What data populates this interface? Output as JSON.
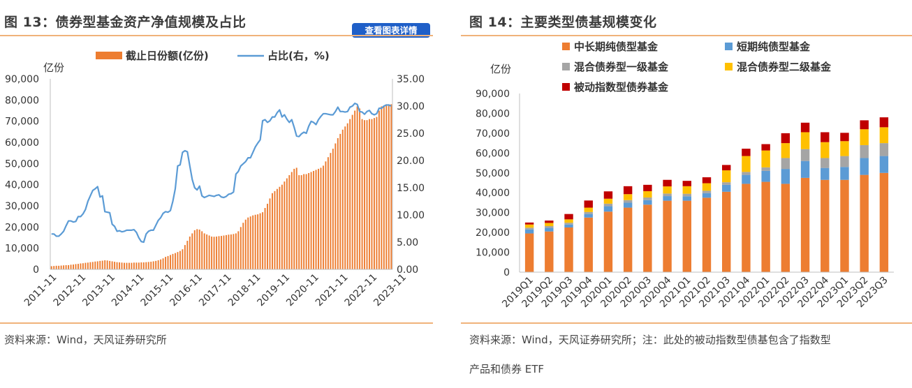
{
  "left": {
    "title": "图 13：债券型基金资产净值规模及占比",
    "button_label": "查看图表详情",
    "source": "资料来源：Wind，天风证券研究所"
  },
  "right": {
    "title": "图 14：主要类型债基规模变化",
    "source_line1": "资料来源：Wind，天风证券研究所；注：此处的被动指数型债基包含了指数型",
    "source_line2": "产品和债券 ETF"
  },
  "colors": {
    "rule": "#f0b27a",
    "bar_orange": "#ed7d31",
    "line_blue": "#5b9bd5",
    "gray": "#a5a5a5",
    "yellow": "#ffc000",
    "red": "#c00000",
    "button_blue": "#1f5fc8"
  },
  "chart_data": [
    {
      "type": "bar+line",
      "y_left_label": "亿份",
      "legend": [
        "截止日份额(亿份)",
        "占比(右，%)"
      ],
      "legend_position": "top-center",
      "y_left_ticks": [
        "0",
        "10,000",
        "20,000",
        "30,000",
        "40,000",
        "50,000",
        "60,000",
        "70,000",
        "80,000",
        "90,000"
      ],
      "y_right_ticks": [
        "0.00",
        "5.00",
        "10.00",
        "15.00",
        "20.00",
        "25.00",
        "30.00",
        "35.00"
      ],
      "ylim_left": [
        0,
        90000
      ],
      "ylim_right": [
        0,
        35
      ],
      "x_ticks": [
        "2011-11",
        "2012-11",
        "2013-11",
        "2014-11",
        "2015-11",
        "2016-11",
        "2017-11",
        "2018-11",
        "2019-11",
        "2020-11",
        "2021-11",
        "2022-11",
        "2023-11"
      ],
      "grid": false,
      "x_start": "2011-11",
      "series": [
        {
          "name": "截止日份额(亿份)",
          "type": "bar",
          "values": [
            1500,
            1600,
            1700,
            1700,
            1800,
            1900,
            2000,
            2000,
            2200,
            2300,
            2500,
            2600,
            2800,
            2900,
            3100,
            3200,
            3400,
            3500,
            3700,
            3800,
            4000,
            4100,
            4300,
            4200,
            4000,
            3800,
            3600,
            3400,
            3300,
            3200,
            3100,
            3100,
            3100,
            3100,
            3200,
            3200,
            3200,
            3300,
            3300,
            3400,
            3500,
            3600,
            3800,
            4000,
            4300,
            4700,
            5200,
            5900,
            6300,
            6800,
            7300,
            7700,
            8200,
            8700,
            9500,
            11500,
            13500,
            15500,
            17000,
            18500,
            19000,
            18800,
            18000,
            17000,
            16500,
            16000,
            15500,
            15400,
            15500,
            15700,
            15800,
            16000,
            16200,
            16400,
            16500,
            16700,
            17000,
            18000,
            20000,
            22000,
            23500,
            24500,
            25000,
            25500,
            25800,
            26000,
            26500,
            27000,
            29000,
            31000,
            33500,
            36000,
            37000,
            38000,
            39000,
            40000,
            41500,
            43000,
            44500,
            46000,
            47500,
            48000,
            44500,
            44500,
            45000,
            45000,
            45500,
            46000,
            46500,
            47000,
            47500,
            48000,
            49000,
            51000,
            53000,
            55000,
            57000,
            59500,
            62000,
            64000,
            66000,
            67500,
            69000,
            71000,
            73000,
            75000,
            77000,
            76000,
            71000,
            70500,
            70500,
            71000,
            71000,
            71500,
            72000,
            75000,
            77000,
            77000,
            78000,
            78000,
            78000
          ]
        },
        {
          "name": "占比(右，%)",
          "type": "line",
          "values": [
            6.5,
            6.5,
            6.1,
            6.1,
            6.5,
            7.0,
            8.0,
            8.9,
            8.9,
            8.7,
            8.8,
            9.7,
            9.7,
            10.2,
            11.0,
            12.5,
            13.5,
            14.5,
            14.8,
            15.2,
            13.3,
            13.5,
            10.6,
            10.5,
            10.4,
            8.3,
            7.9,
            7.0,
            7.1,
            6.9,
            7.0,
            7.2,
            7.2,
            7.2,
            7.3,
            6.8,
            5.8,
            5.1,
            5.0,
            6.5,
            7.0,
            7.2,
            7.2,
            8.1,
            9.0,
            9.5,
            10.3,
            10.6,
            10.5,
            10.8,
            12.5,
            14.8,
            19.0,
            19.2,
            21.5,
            21.8,
            21.6,
            19.0,
            16.5,
            15.0,
            14.6,
            15.3,
            13.5,
            13.2,
            13.4,
            13.6,
            13.5,
            13.4,
            13.6,
            13.7,
            13.3,
            13.2,
            13.4,
            13.8,
            13.9,
            14.2,
            17.5,
            18.0,
            19.0,
            19.4,
            19.8,
            20.5,
            20.5,
            21.5,
            22.5,
            23.2,
            23.8,
            27.3,
            27.5,
            27.0,
            27.3,
            28.0,
            28.0,
            28.8,
            29.3,
            28.0,
            28.4,
            27.6,
            27.0,
            27.5,
            26.1,
            24.5,
            24.4,
            24.9,
            25.2,
            25.0,
            26.3,
            27.2,
            27.0,
            26.6,
            27.5,
            28.1,
            28.6,
            28.6,
            28.5,
            28.4,
            28.4,
            29.0,
            29.8,
            29.0,
            29.0,
            28.9,
            29.0,
            29.8,
            30.0,
            30.5,
            30.3,
            29.0,
            28.9,
            28.5,
            29.0,
            29.2,
            28.6,
            28.4,
            28.6,
            29.6,
            29.6,
            30.0,
            30.2,
            30.2,
            30.0
          ]
        }
      ]
    },
    {
      "type": "stacked-bar",
      "y_label": "亿份",
      "legend_position": "top",
      "ylim": [
        0,
        90000
      ],
      "y_ticks": [
        "0",
        "10,000",
        "20,000",
        "30,000",
        "40,000",
        "50,000",
        "60,000",
        "70,000",
        "80,000",
        "90,000"
      ],
      "grid": false,
      "categories": [
        "2019Q1",
        "2019Q2",
        "2019Q3",
        "2019Q4",
        "2020Q1",
        "2020Q2",
        "2020Q3",
        "2020Q4",
        "2021Q1",
        "2021Q2",
        "2021Q3",
        "2021Q4",
        "2022Q1",
        "2022Q2",
        "2022Q3",
        "2022Q4",
        "2023Q1",
        "2023Q2",
        "2023Q3"
      ],
      "series": [
        {
          "name": "中长期纯债型基金",
          "color": "#ed7d31",
          "values": [
            19500,
            20500,
            22500,
            27500,
            30500,
            32500,
            34000,
            36000,
            36000,
            37500,
            40500,
            44500,
            45500,
            44500,
            47500,
            46500,
            46500,
            49000,
            50000
          ]
        },
        {
          "name": "短期纯债型基金",
          "color": "#5b9bd5",
          "values": [
            2000,
            1800,
            1500,
            1800,
            2700,
            2500,
            2300,
            2300,
            2200,
            2300,
            3500,
            4500,
            5500,
            7500,
            8500,
            6000,
            6500,
            8500,
            8500
          ]
        },
        {
          "name": "混合债券型一级基金",
          "color": "#a5a5a5",
          "values": [
            900,
            900,
            900,
            1000,
            1300,
            1300,
            1300,
            1300,
            1300,
            1200,
            1300,
            1500,
            1800,
            5500,
            6000,
            5000,
            5500,
            6500,
            6500
          ]
        },
        {
          "name": "混合债券型二级基金",
          "color": "#ffc000",
          "values": [
            1600,
            1600,
            1700,
            2200,
            2500,
            3000,
            3200,
            3600,
            3800,
            3800,
            6000,
            8000,
            8500,
            7500,
            8500,
            8000,
            7500,
            8000,
            8000
          ]
        },
        {
          "name": "被动指数型债券基金",
          "color": "#c00000",
          "values": [
            1000,
            1200,
            2700,
            3600,
            3700,
            4000,
            3200,
            3300,
            2700,
            3000,
            2700,
            3700,
            3200,
            5000,
            4800,
            5000,
            4200,
            4500,
            5000
          ]
        }
      ]
    }
  ]
}
